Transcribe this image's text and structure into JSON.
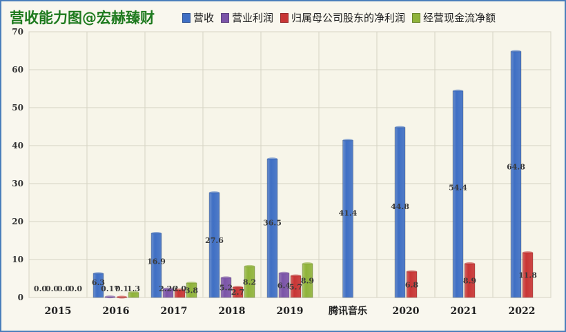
{
  "chart_data": {
    "type": "bar",
    "title": "营收能力图@宏赫臻财",
    "categories": [
      "2015",
      "2016",
      "2017",
      "2018",
      "2019",
      "腾讯音乐",
      "2020",
      "2021",
      "2022"
    ],
    "ylim": [
      0,
      70
    ],
    "yticks": [
      0,
      10,
      20,
      30,
      40,
      50,
      60,
      70
    ],
    "grid": true,
    "legend_position": "top",
    "series": [
      {
        "name": "营收",
        "color": "#3f6fc4",
        "values": [
          0.0,
          6.3,
          16.9,
          27.6,
          36.5,
          41.4,
          44.8,
          54.4,
          64.8
        ],
        "labels": [
          "0.0",
          "6.3",
          "16.9",
          "27.6",
          "36.5",
          "41.4",
          "44.8",
          "54.4",
          "64.8"
        ]
      },
      {
        "name": "营业利润",
        "color": "#7b54a8",
        "values": [
          0.0,
          0.17,
          2.26,
          5.2,
          6.4,
          null,
          null,
          null,
          null
        ],
        "labels": [
          "0.0",
          "0.17",
          "2.26",
          "5.2",
          "6.4",
          "",
          "",
          "",
          ""
        ]
      },
      {
        "name": "归属母公司股东的净利润",
        "color": "#c83535",
        "values": [
          0.0,
          0.1,
          2.0,
          2.7,
          5.7,
          null,
          6.8,
          8.9,
          11.8
        ],
        "labels": [
          "0.0",
          "0.1",
          "2.0",
          "2.7",
          "5.7",
          "",
          "6.8",
          "8.9",
          "11.8"
        ]
      },
      {
        "name": "经营现金流净额",
        "color": "#8fb33a",
        "values": [
          0.0,
          1.3,
          3.8,
          8.2,
          8.9,
          null,
          null,
          null,
          null
        ],
        "labels": [
          "0.0",
          "1.3",
          "3.8",
          "8.2",
          "8.9",
          "",
          "",
          "",
          ""
        ]
      }
    ]
  }
}
